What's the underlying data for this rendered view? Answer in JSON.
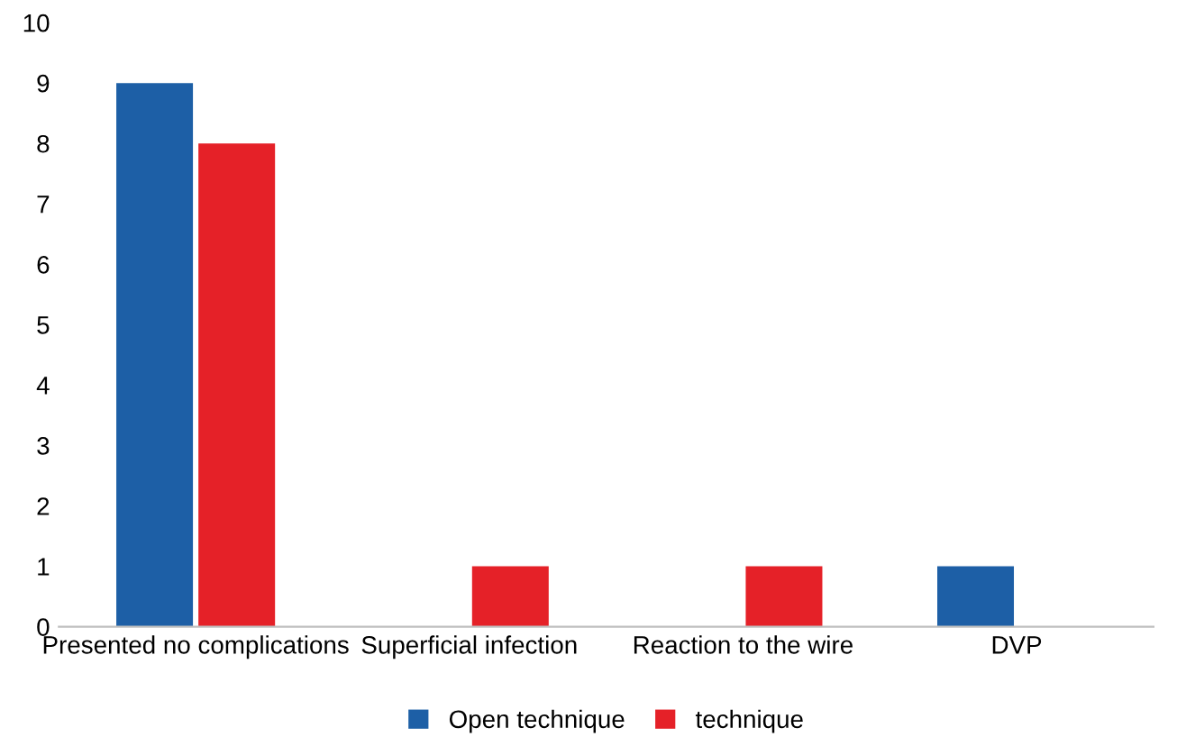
{
  "chart_data": {
    "type": "bar",
    "categories": [
      "Presented no complications",
      "Superficial infection",
      "Reaction to the wire",
      "DVP"
    ],
    "series": [
      {
        "name": "Open technique",
        "color": "#1d5fa6",
        "values": [
          9,
          0,
          0,
          1
        ]
      },
      {
        "name": "technique",
        "color": "#e52128",
        "values": [
          8,
          1,
          1,
          0
        ]
      }
    ],
    "ylim": [
      0,
      10
    ],
    "yticks": [
      0,
      1,
      2,
      3,
      4,
      5,
      6,
      7,
      8,
      9,
      10
    ],
    "grid": false,
    "legend": "bottom"
  }
}
